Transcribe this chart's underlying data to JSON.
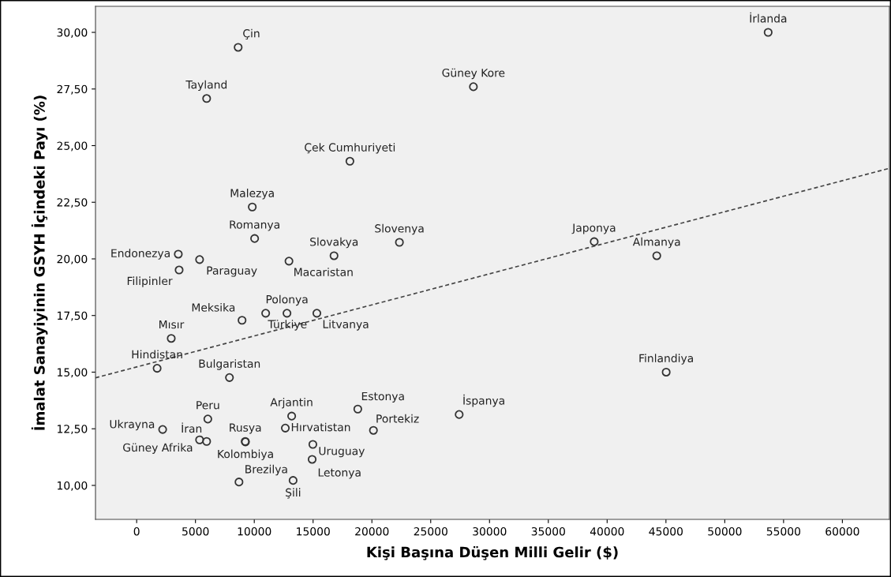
{
  "chart_data": {
    "type": "scatter",
    "xlabel": "Kişi Başına Düşen Milli Gelir ($)",
    "ylabel": "İmalat Sanayiyinin GSYH İçindeki Payı (%)",
    "xlim": [
      -3500,
      64000
    ],
    "ylim": [
      8.5,
      31.15
    ],
    "xticks": [
      0,
      5000,
      10000,
      15000,
      20000,
      25000,
      30000,
      35000,
      40000,
      45000,
      50000,
      55000,
      60000
    ],
    "yticks": [
      {
        "value": 10,
        "label": "10,00"
      },
      {
        "value": 12.5,
        "label": "12,50"
      },
      {
        "value": 15,
        "label": "15,00"
      },
      {
        "value": 17.5,
        "label": "17,50"
      },
      {
        "value": 20,
        "label": "20,00"
      },
      {
        "value": 22.5,
        "label": "22,50"
      },
      {
        "value": 25,
        "label": "25,00"
      },
      {
        "value": 27.5,
        "label": "27,50"
      },
      {
        "value": 30,
        "label": "30,00"
      }
    ],
    "grid": false,
    "series": [
      {
        "marker": "circle",
        "color": "#333333",
        "x": [
          53690,
          8630,
          28630,
          5950,
          18130,
          9830,
          10030,
          22340,
          38900,
          16780,
          44220,
          3540,
          5350,
          12950,
          3610,
          8960,
          10970,
          12780,
          15320,
          2940,
          1740,
          7890,
          45020,
          18800,
          27420,
          13180,
          6050,
          12640,
          2210,
          20130,
          5950,
          5350,
          9230,
          9250,
          14980,
          14920,
          8700,
          13300
        ],
        "values": [
          30.0,
          29.34,
          27.6,
          27.08,
          24.31,
          22.29,
          20.9,
          20.73,
          20.76,
          20.14,
          20.14,
          20.21,
          19.97,
          19.9,
          19.51,
          17.29,
          17.6,
          17.6,
          17.6,
          16.49,
          15.17,
          14.76,
          15.0,
          13.37,
          13.13,
          13.06,
          12.93,
          12.53,
          12.47,
          12.43,
          11.94,
          12.01,
          11.94,
          11.92,
          11.81,
          11.15,
          10.15,
          10.22
        ]
      },
      {
        "type": "line",
        "line_style": "dashed",
        "color": "#444444",
        "x": [
          -3500,
          64000
        ],
        "values": [
          14.75,
          24.0
        ]
      }
    ],
    "annotations": [
      {
        "text": "İrlanda",
        "x": 53690,
        "y": 30.0
      },
      {
        "text": "Çin",
        "x": 8630,
        "y": 29.34
      },
      {
        "text": "Güney Kore",
        "x": 28630,
        "y": 27.6
      },
      {
        "text": "Tayland",
        "x": 5950,
        "y": 27.08
      },
      {
        "text": "Çek Cumhuriyeti",
        "x": 18130,
        "y": 24.31
      },
      {
        "text": "Malezya",
        "x": 9830,
        "y": 22.29
      },
      {
        "text": "Romanya",
        "x": 10030,
        "y": 20.9
      },
      {
        "text": "Slovenya",
        "x": 22340,
        "y": 20.73
      },
      {
        "text": "Japonya",
        "x": 38900,
        "y": 20.76
      },
      {
        "text": "Slovakya",
        "x": 16780,
        "y": 20.14
      },
      {
        "text": "Almanya",
        "x": 44220,
        "y": 20.14
      },
      {
        "text": "Endonezya",
        "x": 3540,
        "y": 20.21
      },
      {
        "text": "Paraguay",
        "x": 5350,
        "y": 19.97
      },
      {
        "text": "Macaristan",
        "x": 12950,
        "y": 19.9
      },
      {
        "text": "Filipinler",
        "x": 3610,
        "y": 19.51
      },
      {
        "text": "Meksika",
        "x": 8960,
        "y": 17.29
      },
      {
        "text": "Türkiye",
        "x": 10970,
        "y": 17.6
      },
      {
        "text": "Polonya",
        "x": 12780,
        "y": 17.6
      },
      {
        "text": "Litvanya",
        "x": 15320,
        "y": 17.6
      },
      {
        "text": "Mısır",
        "x": 2940,
        "y": 16.49
      },
      {
        "text": "Hindistan",
        "x": 1740,
        "y": 15.17
      },
      {
        "text": "Bulgaristan",
        "x": 7890,
        "y": 14.76
      },
      {
        "text": "Finlandiya",
        "x": 45020,
        "y": 15.0
      },
      {
        "text": "Estonya",
        "x": 18800,
        "y": 13.37
      },
      {
        "text": "İspanya",
        "x": 27420,
        "y": 13.13
      },
      {
        "text": "Arjantin",
        "x": 13180,
        "y": 13.06
      },
      {
        "text": "Peru",
        "x": 6050,
        "y": 12.93
      },
      {
        "text": "Hırvatistan",
        "x": 12640,
        "y": 12.53
      },
      {
        "text": "Ukrayna",
        "x": 2210,
        "y": 12.47
      },
      {
        "text": "Portekiz",
        "x": 20130,
        "y": 12.43
      },
      {
        "text": "İran",
        "x": 5950,
        "y": 11.94
      },
      {
        "text": "Güney Afrika",
        "x": 5350,
        "y": 12.01
      },
      {
        "text": "Rusya",
        "x": 9230,
        "y": 11.94
      },
      {
        "text": "Kolombiya",
        "x": 9250,
        "y": 11.92
      },
      {
        "text": "Uruguay",
        "x": 14980,
        "y": 11.81
      },
      {
        "text": "Letonya",
        "x": 14920,
        "y": 11.15
      },
      {
        "text": "Brezilya",
        "x": 8700,
        "y": 10.15
      },
      {
        "text": "Şili",
        "x": 13300,
        "y": 10.22
      }
    ]
  }
}
